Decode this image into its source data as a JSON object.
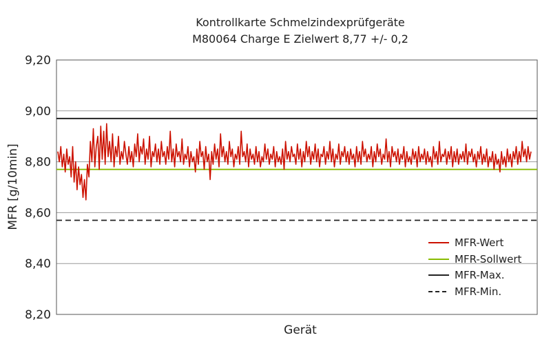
{
  "chart_data": {
    "type": "line",
    "title": "Kontrollkarte Schmelzindexprüfgeräte",
    "subtitle": "M80064 Charge E Zielwert 8,77 +/- 0,2",
    "xlabel": "Gerät",
    "ylabel": "MFR [g/10min]",
    "ylim": [
      8.2,
      9.2
    ],
    "yticks": [
      8.2,
      8.4,
      8.6,
      8.8,
      9.0,
      9.2
    ],
    "ytick_labels": [
      "8,20",
      "8,40",
      "8,60",
      "8,80",
      "9,00",
      "9,20"
    ],
    "grid": true,
    "legend_position": "bottom-right",
    "sollwert": 8.77,
    "max": 8.97,
    "min": 8.57,
    "series": [
      {
        "name": "MFR-Wert",
        "color": "#cc1100",
        "values": [
          8.84,
          8.8,
          8.86,
          8.78,
          8.83,
          8.76,
          8.85,
          8.79,
          8.82,
          8.74,
          8.86,
          8.72,
          8.8,
          8.69,
          8.78,
          8.71,
          8.75,
          8.66,
          8.73,
          8.65,
          8.79,
          8.74,
          8.88,
          8.8,
          8.93,
          8.78,
          8.86,
          8.9,
          8.77,
          8.94,
          8.81,
          8.92,
          8.79,
          8.95,
          8.82,
          8.88,
          8.8,
          8.91,
          8.78,
          8.86,
          8.82,
          8.9,
          8.79,
          8.84,
          8.81,
          8.88,
          8.83,
          8.79,
          8.86,
          8.8,
          8.84,
          8.78,
          8.87,
          8.82,
          8.91,
          8.8,
          8.86,
          8.83,
          8.89,
          8.79,
          8.85,
          8.81,
          8.9,
          8.78,
          8.84,
          8.82,
          8.87,
          8.8,
          8.85,
          8.79,
          8.88,
          8.82,
          8.84,
          8.79,
          8.86,
          8.81,
          8.92,
          8.8,
          8.85,
          8.78,
          8.87,
          8.82,
          8.84,
          8.8,
          8.89,
          8.79,
          8.83,
          8.81,
          8.86,
          8.78,
          8.84,
          8.8,
          8.82,
          8.76,
          8.85,
          8.79,
          8.88,
          8.82,
          8.84,
          8.77,
          8.86,
          8.8,
          8.83,
          8.73,
          8.84,
          8.79,
          8.87,
          8.81,
          8.85,
          8.78,
          8.91,
          8.82,
          8.86,
          8.8,
          8.84,
          8.79,
          8.88,
          8.82,
          8.85,
          8.78,
          8.83,
          8.81,
          8.86,
          8.79,
          8.92,
          8.82,
          8.84,
          8.8,
          8.87,
          8.78,
          8.85,
          8.81,
          8.83,
          8.79,
          8.86,
          8.8,
          8.84,
          8.78,
          8.82,
          8.8,
          8.87,
          8.81,
          8.85,
          8.79,
          8.83,
          8.81,
          8.86,
          8.78,
          8.84,
          8.8,
          8.82,
          8.79,
          8.85,
          8.77,
          8.88,
          8.81,
          8.84,
          8.8,
          8.86,
          8.82,
          8.83,
          8.79,
          8.87,
          8.81,
          8.85,
          8.78,
          8.84,
          8.8,
          8.88,
          8.82,
          8.86,
          8.79,
          8.84,
          8.81,
          8.87,
          8.8,
          8.85,
          8.78,
          8.83,
          8.82,
          8.86,
          8.79,
          8.84,
          8.81,
          8.88,
          8.8,
          8.85,
          8.78,
          8.83,
          8.81,
          8.87,
          8.79,
          8.84,
          8.82,
          8.86,
          8.8,
          8.84,
          8.79,
          8.85,
          8.81,
          8.83,
          8.78,
          8.86,
          8.8,
          8.84,
          8.79,
          8.88,
          8.82,
          8.85,
          8.8,
          8.83,
          8.81,
          8.86,
          8.78,
          8.84,
          8.8,
          8.87,
          8.82,
          8.85,
          8.79,
          8.83,
          8.81,
          8.89,
          8.8,
          8.84,
          8.78,
          8.86,
          8.82,
          8.84,
          8.8,
          8.85,
          8.79,
          8.83,
          8.81,
          8.86,
          8.78,
          8.84,
          8.8,
          8.82,
          8.79,
          8.85,
          8.81,
          8.84,
          8.78,
          8.86,
          8.8,
          8.83,
          8.81,
          8.85,
          8.79,
          8.84,
          8.8,
          8.82,
          8.78,
          8.86,
          8.81,
          8.84,
          8.79,
          8.88,
          8.8,
          8.83,
          8.82,
          8.85,
          8.79,
          8.84,
          8.81,
          8.86,
          8.78,
          8.84,
          8.8,
          8.85,
          8.79,
          8.83,
          8.81,
          8.84,
          8.8,
          8.87,
          8.79,
          8.84,
          8.82,
          8.85,
          8.8,
          8.83,
          8.78,
          8.84,
          8.81,
          8.86,
          8.79,
          8.83,
          8.8,
          8.85,
          8.78,
          8.82,
          8.8,
          8.84,
          8.77,
          8.83,
          8.79,
          8.81,
          8.76,
          8.84,
          8.79,
          8.82,
          8.78,
          8.85,
          8.8,
          8.83,
          8.78,
          8.84,
          8.81,
          8.86,
          8.79,
          8.84,
          8.8,
          8.88,
          8.82,
          8.85,
          8.8,
          8.86,
          8.81,
          8.84
        ]
      },
      {
        "name": "MFR-Sollwert",
        "color": "#88bb00"
      },
      {
        "name": "MFR-Max.",
        "color": "#222222"
      },
      {
        "name": "MFR-Min.",
        "color": "#222222"
      }
    ]
  }
}
